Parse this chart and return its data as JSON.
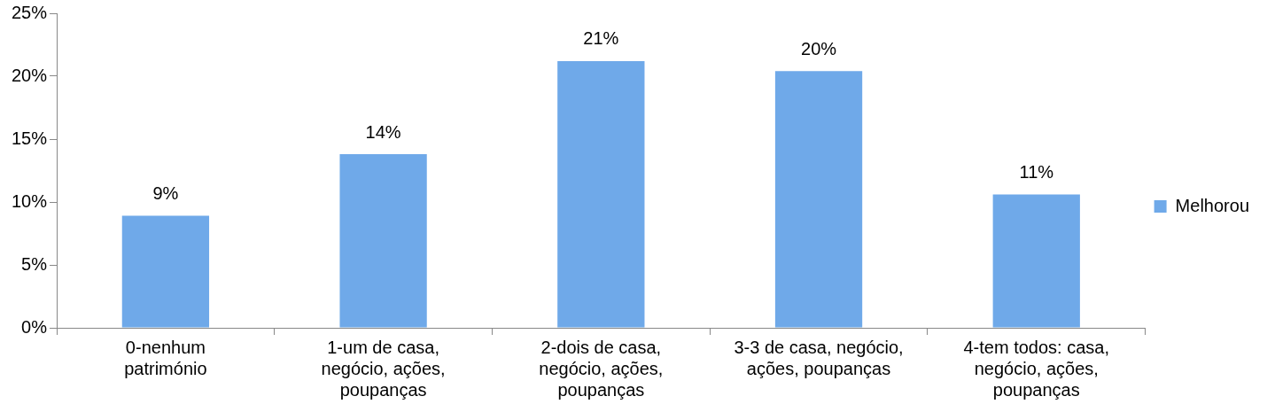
{
  "chart_data": {
    "type": "bar",
    "categories": [
      "0-nenhum\npatrimónio",
      "1-um de casa,\nnegócio, ações,\npoupanças",
      "2-dois de casa,\nnegócio, ações,\npoupanças",
      "3-3 de casa, negócio,\nações, poupanças",
      "4-tem todos: casa,\nnegócio, ações,\npoupanças"
    ],
    "series": [
      {
        "name": "Melhorou",
        "color": "#6fa9e9",
        "values": [
          8.9,
          13.8,
          21.2,
          20.4,
          10.6
        ],
        "value_labels": [
          "9%",
          "14%",
          "21%",
          "20%",
          "11%"
        ]
      }
    ],
    "ylim": [
      0,
      25
    ],
    "yticks": [
      {
        "value": 0,
        "label": "0%"
      },
      {
        "value": 5,
        "label": "5%"
      },
      {
        "value": 10,
        "label": "10%"
      },
      {
        "value": 15,
        "label": "15%"
      },
      {
        "value": 20,
        "label": "20%"
      },
      {
        "value": 25,
        "label": "25%"
      }
    ],
    "grid": false,
    "legend": "right"
  }
}
